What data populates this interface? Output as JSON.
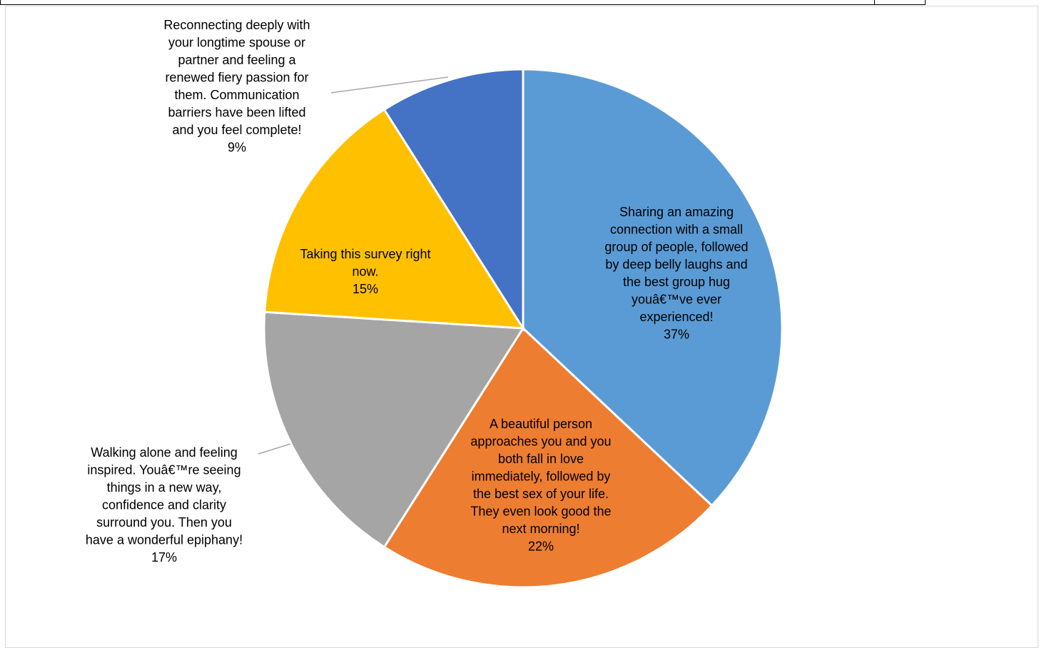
{
  "chart_data": {
    "type": "pie",
    "title": "",
    "slices": [
      {
        "label_lines": [
          "Sharing an amazing",
          "connection with a small",
          "group of people, followed",
          "by deep belly laughs and",
          "the best group hug",
          "youâ€™ve ever",
          "experienced!"
        ],
        "label": "Sharing an amazing connection with a small group of people, followed by deep belly laughs and the best group hug youâ€™ve ever experienced!",
        "percent_text": "37%",
        "value": 37,
        "color": "#5B9BD5"
      },
      {
        "label_lines": [
          "A beautiful person",
          "approaches you and you",
          "both fall in love",
          "immediately, followed by",
          "the best sex of your life.",
          "They even look good the",
          "next morning!"
        ],
        "label": "A beautiful person approaches you and you both fall in love immediately, followed by the best sex of your life. They even look good the next morning!",
        "percent_text": "22%",
        "value": 22,
        "color": "#ED7D31"
      },
      {
        "label_lines": [
          "Walking alone and feeling",
          "inspired. Youâ€™re seeing",
          "things in a new way,",
          "confidence and clarity",
          "surround you. Then you",
          "have a wonderful epiphany!"
        ],
        "label": "Walking alone and feeling inspired. Youâ€™re seeing things in a new way, confidence and clarity surround you. Then you have a wonderful epiphany!",
        "percent_text": "17%",
        "value": 17,
        "color": "#A5A5A5"
      },
      {
        "label_lines": [
          "Taking this survey right",
          "now."
        ],
        "label": "Taking this survey right now.",
        "percent_text": "15%",
        "value": 15,
        "color": "#FFC000"
      },
      {
        "label_lines": [
          "Reconnecting deeply with",
          "your longtime spouse or",
          "partner and feeling a",
          "renewed fiery passion for",
          "them. Communication",
          "barriers have been lifted",
          "and you feel complete!"
        ],
        "label": "Reconnecting deeply with your longtime spouse or partner and feeling a renewed fiery passion for them. Communication barriers have been lifted and you feel complete!",
        "percent_text": "9%",
        "value": 9,
        "color": "#4472C4"
      }
    ]
  }
}
